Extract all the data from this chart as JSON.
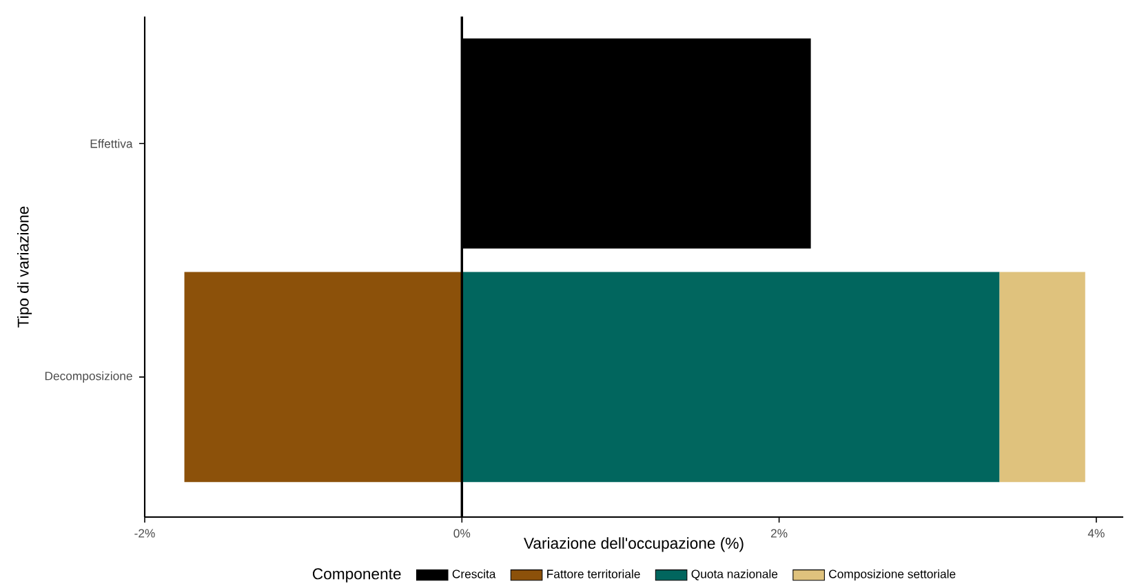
{
  "chart_data": {
    "type": "bar",
    "orientation": "horizontal",
    "stacked": true,
    "categories": [
      "Effettiva",
      "Decomposizione"
    ],
    "series": [
      {
        "name": "Crescita",
        "color": "#000000",
        "values": [
          2.2,
          null
        ]
      },
      {
        "name": "Fattore territoriale",
        "color": "#8c510a",
        "values": [
          null,
          -1.75
        ]
      },
      {
        "name": "Quota nazionale",
        "color": "#01665e",
        "values": [
          null,
          3.39
        ]
      },
      {
        "name": "Composizione settoriale",
        "color": "#dfc27d",
        "values": [
          null,
          0.54
        ]
      }
    ],
    "xlim": [
      -2.0,
      4.17
    ],
    "xticks": [
      {
        "value": -2,
        "label": "-2%"
      },
      {
        "value": 0,
        "label": "0%"
      },
      {
        "value": 2,
        "label": "2%"
      },
      {
        "value": 4,
        "label": "4%"
      }
    ],
    "xlabel": "Variazione dell'occupazione (%)",
    "ylabel": "Tipo di variazione",
    "legend_title": "Componente",
    "legend": "bottom",
    "grid": false,
    "ref_lines": [
      {
        "axis": "x",
        "value": 0,
        "color": "#000000"
      }
    ]
  }
}
